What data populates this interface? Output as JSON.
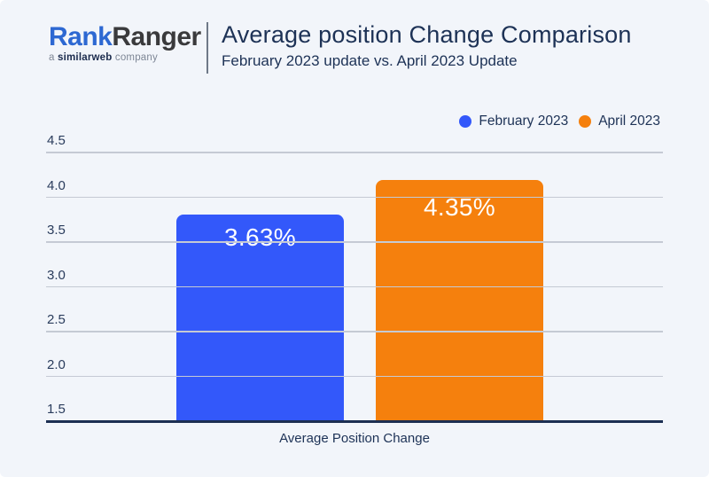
{
  "header": {
    "logo": {
      "part1": "Rank",
      "part2": "Ranger",
      "tagline_prefix": "a",
      "tagline_brand": "similarweb",
      "tagline_suffix": "company"
    },
    "title": "Average position Change Comparison",
    "subtitle": "February 2023 update vs. April 2023 Update"
  },
  "colors": {
    "background": "#F2F5FA",
    "text_navy": "#1D3256",
    "gridline": "#C5CAD4",
    "axis_line": "#1C2F52",
    "february_blue": "#3358FA",
    "april_orange": "#F5800D",
    "logo_blue": "#2D68D2",
    "logo_dark": "#3A3A3C"
  },
  "chart_data": {
    "type": "bar",
    "title": "Average position Change Comparison",
    "subtitle": "February 2023 update vs. April 2023 Update",
    "categories": [
      "Average Position Change"
    ],
    "series": [
      {
        "name": "February 2023",
        "values": [
          3.63
        ],
        "data_label": "3.63%",
        "color": "#3358FA",
        "bar_top_axis_position": 3.8
      },
      {
        "name": "April 2023",
        "values": [
          4.35
        ],
        "data_label": "4.35%",
        "color": "#F5800D",
        "bar_top_axis_position": 4.18
      }
    ],
    "xlabel": "Average Position Change",
    "ylabel": "",
    "yticks": [
      "4.5",
      "4.0",
      "3.5",
      "3.0",
      "2.5",
      "2.0",
      "1.5"
    ],
    "ylim": [
      1.5,
      4.5
    ],
    "grid": true,
    "legend_position": "top-right"
  }
}
